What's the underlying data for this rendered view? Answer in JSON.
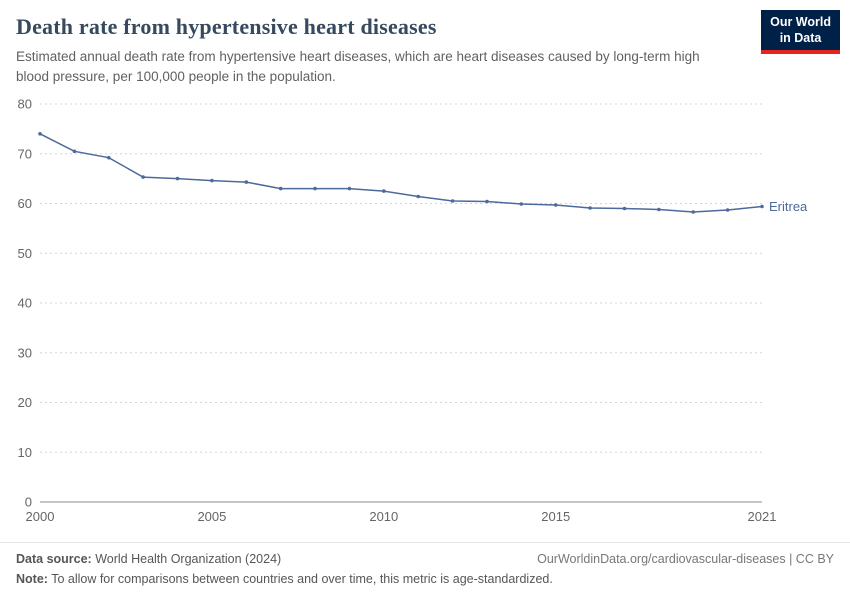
{
  "header": {
    "title": "Death rate from hypertensive heart diseases",
    "subtitle": "Estimated annual death rate from hypertensive heart diseases, which are heart diseases caused by long-term high blood pressure, per 100,000 people in the population."
  },
  "logo": {
    "line1": "Our World",
    "line2": "in Data"
  },
  "colors": {
    "line": "#4c6a9c",
    "end_label": "#4c6a9c",
    "logo_bg": "#002147",
    "logo_accent": "#e2261f",
    "gridline": "#d5d5d5",
    "axis": "#8c8c8c",
    "tick_text": "#666666"
  },
  "chart_data": {
    "type": "line",
    "title": "Death rate from hypertensive heart diseases",
    "xlabel": "",
    "ylabel": "",
    "xlim": [
      2000,
      2021
    ],
    "ylim": [
      0,
      80
    ],
    "xticks": [
      2000,
      2005,
      2010,
      2015,
      2021
    ],
    "yticks": [
      0,
      10,
      20,
      30,
      40,
      50,
      60,
      70,
      80
    ],
    "grid": true,
    "legend_position": "end-of-line-label",
    "x": [
      2000,
      2001,
      2002,
      2003,
      2004,
      2005,
      2006,
      2007,
      2008,
      2009,
      2010,
      2011,
      2012,
      2013,
      2014,
      2015,
      2016,
      2017,
      2018,
      2019,
      2020,
      2021
    ],
    "series": [
      {
        "name": "Eritrea",
        "values": [
          74,
          70.5,
          69.2,
          65.3,
          65,
          64.6,
          64.3,
          63,
          63,
          63,
          62.5,
          61.4,
          60.5,
          60.4,
          59.9,
          59.7,
          59.1,
          59,
          58.8,
          58.3,
          58.7,
          59.4
        ]
      }
    ]
  },
  "footer": {
    "datasource_label": "Data source:",
    "datasource_value": " World Health Organization (2024)",
    "right": "OurWorldinData.org/cardiovascular-diseases | CC BY",
    "note_label": "Note:",
    "note_value": " To allow for comparisons between countries and over time, this metric is age-standardized."
  }
}
